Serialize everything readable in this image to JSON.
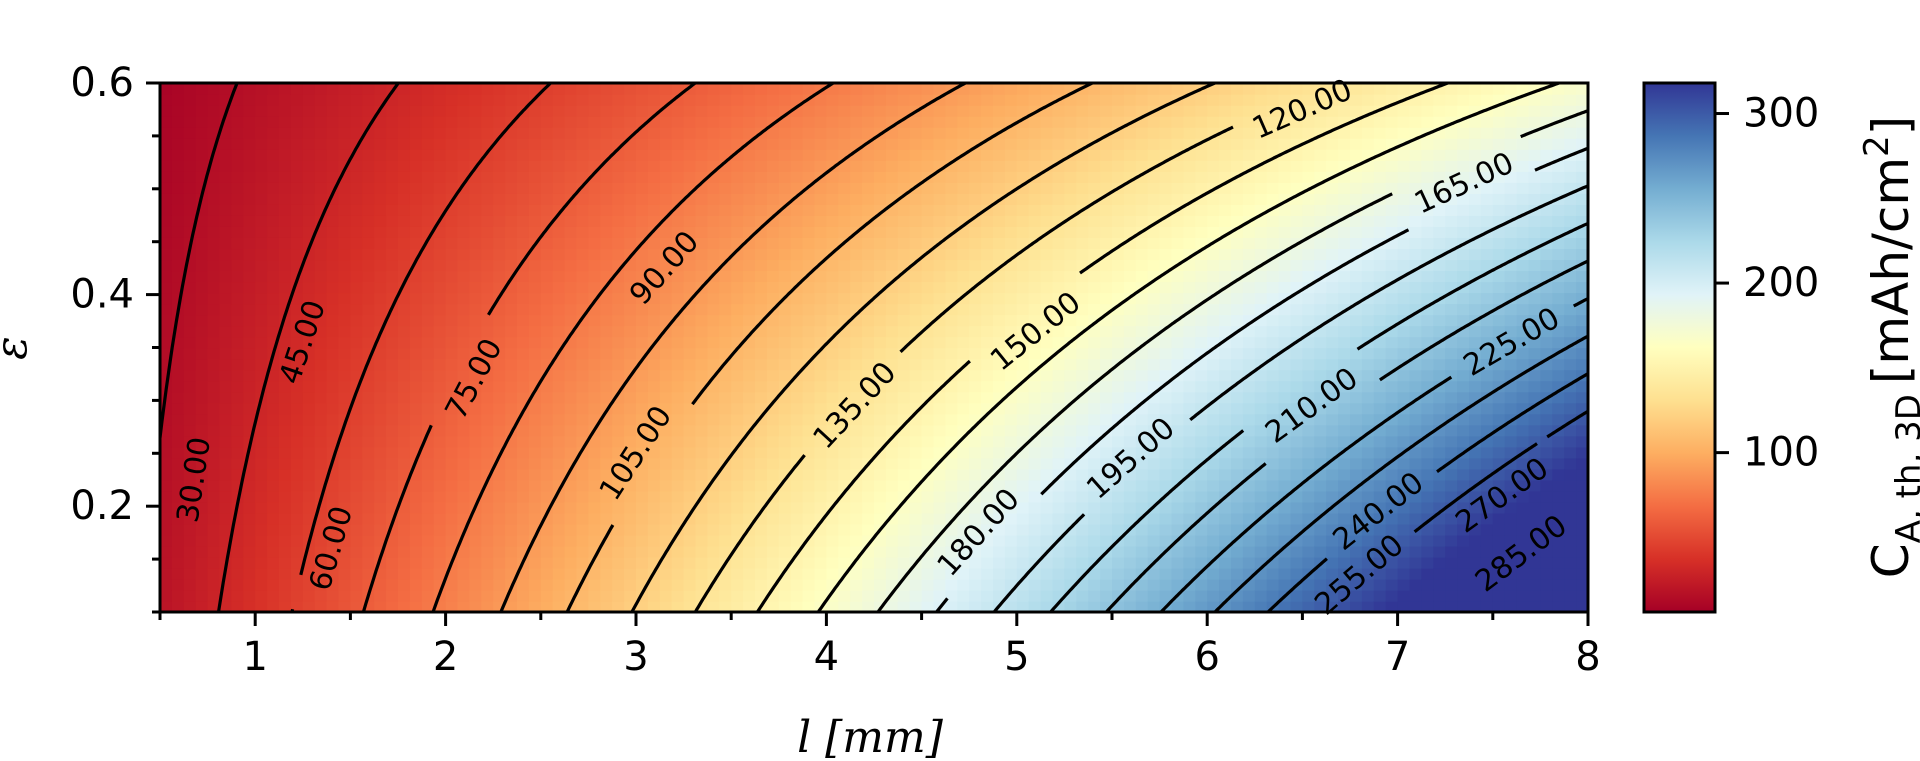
{
  "chart_data": {
    "type": "heatmap",
    "subtype": "filled-contour",
    "xlabel": "l [mm]",
    "ylabel": "ε",
    "xlim": [
      0.5,
      8
    ],
    "ylim": [
      0.1,
      0.6
    ],
    "xticks": [
      1,
      2,
      3,
      4,
      5,
      6,
      7,
      8
    ],
    "xtick_labels": [
      "1",
      "2",
      "3",
      "4",
      "5",
      "6",
      "7",
      "8"
    ],
    "yticks": [
      0.2,
      0.4,
      0.6
    ],
    "ytick_labels": [
      "0.2",
      "0.4",
      "0.6"
    ],
    "colormap": "RdYlBu",
    "colormap_stops": [
      "#a50026",
      "#d73027",
      "#f46d43",
      "#fdae61",
      "#fee090",
      "#ffffbf",
      "#e0f3f8",
      "#abd9e9",
      "#74add1",
      "#4575b4",
      "#313695"
    ],
    "value_range": [
      6,
      318
    ],
    "contour_levels": [
      15,
      30,
      45,
      60,
      75,
      90,
      105,
      120,
      135,
      150,
      165,
      180,
      195,
      210,
      225,
      240,
      255,
      270,
      285,
      300
    ],
    "contour_labels": [
      {
        "text": "30.00",
        "level": 30,
        "x": 0.68,
        "y": 0.225
      },
      {
        "text": "45.00",
        "level": 45,
        "x": 1.25,
        "y": 0.355
      },
      {
        "text": "60.00",
        "level": 60,
        "x": 1.4,
        "y": 0.16
      },
      {
        "text": "75.00",
        "level": 75,
        "x": 2.15,
        "y": 0.32
      },
      {
        "text": "90.00",
        "level": 90,
        "x": 3.15,
        "y": 0.425
      },
      {
        "text": "105.00",
        "level": 105,
        "x": 3.0,
        "y": 0.25
      },
      {
        "text": "120.00",
        "level": 120,
        "x": 6.5,
        "y": 0.575
      },
      {
        "text": "135.00",
        "level": 135,
        "x": 4.15,
        "y": 0.295
      },
      {
        "text": "150.00",
        "level": 150,
        "x": 5.1,
        "y": 0.365
      },
      {
        "text": "165.00",
        "level": 165,
        "x": 7.35,
        "y": 0.505
      },
      {
        "text": "180.00",
        "level": 180,
        "x": 4.8,
        "y": 0.175
      },
      {
        "text": "195.00",
        "level": 195,
        "x": 5.6,
        "y": 0.245
      },
      {
        "text": "210.00",
        "level": 210,
        "x": 6.55,
        "y": 0.295
      },
      {
        "text": "225.00",
        "level": 225,
        "x": 7.6,
        "y": 0.355
      },
      {
        "text": "240.00",
        "level": 240,
        "x": 6.9,
        "y": 0.195
      },
      {
        "text": "255.00",
        "level": 255,
        "x": 6.8,
        "y": 0.135
      },
      {
        "text": "270.00",
        "level": 270,
        "x": 7.55,
        "y": 0.21
      },
      {
        "text": "285.00",
        "level": 285,
        "x": 7.65,
        "y": 0.155
      }
    ],
    "colorbar": {
      "label": "C",
      "label_subscript": "A, th, 3D",
      "label_units": "[mAh/cm",
      "label_units_sup": "2",
      "label_units_close": "]",
      "ticks": [
        100,
        200,
        300
      ],
      "tick_labels": [
        "100",
        "200",
        "300"
      ]
    }
  }
}
